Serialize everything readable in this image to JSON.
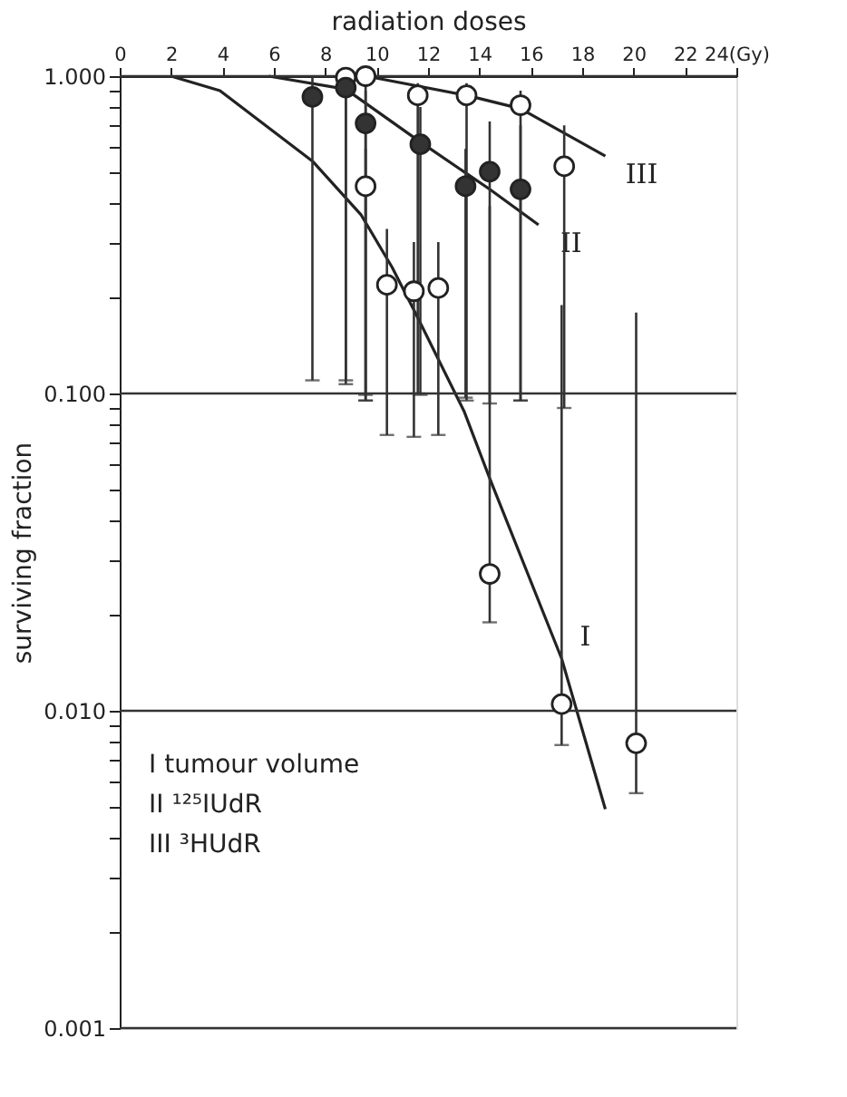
{
  "chart_data": {
    "type": "line",
    "xlabel": "radiation doses",
    "ylabel": "surviving fraction",
    "xlim": [
      0,
      24
    ],
    "xticks": [
      0,
      2,
      4,
      6,
      8,
      10,
      12,
      14,
      16,
      18,
      20,
      22,
      {
        "value": 24,
        "label": "24(Gy)"
      }
    ],
    "ylim": [
      0.001,
      1
    ],
    "log": true,
    "grid": "y",
    "yticks": [
      {
        "value": 0.001,
        "label": "0.001"
      },
      {
        "value": 0.002,
        "label": null
      },
      {
        "value": 0.003,
        "label": null
      },
      {
        "value": 0.004,
        "label": null
      },
      {
        "value": 0.005,
        "label": null
      },
      {
        "value": 0.006,
        "label": null
      },
      {
        "value": 0.007,
        "label": null
      },
      {
        "value": 0.008,
        "label": null
      },
      {
        "value": 0.009,
        "label": null
      },
      {
        "value": 0.01,
        "label": "0.010"
      },
      {
        "value": 0.02,
        "label": null
      },
      {
        "value": 0.03,
        "label": null
      },
      {
        "value": 0.04,
        "label": null
      },
      {
        "value": 0.05,
        "label": null
      },
      {
        "value": 0.06,
        "label": null
      },
      {
        "value": 0.07,
        "label": null
      },
      {
        "value": 0.08,
        "label": null
      },
      {
        "value": 0.09,
        "label": null
      },
      {
        "value": 0.1,
        "label": "0.100"
      },
      {
        "value": 0.2,
        "label": null
      },
      {
        "value": 0.3,
        "label": null
      },
      {
        "value": 0.4,
        "label": null
      },
      {
        "value": 0.5,
        "label": null
      },
      {
        "value": 0.6,
        "label": null
      },
      {
        "value": 0.7,
        "label": null
      },
      {
        "value": 0.8,
        "label": null
      },
      {
        "value": 0.9,
        "label": null
      },
      {
        "value": 1,
        "label": "1.000"
      }
    ],
    "line_style": "solid",
    "series": [
      {
        "name": "I",
        "color": "#222222",
        "x": [
          2,
          3.9,
          7.5,
          9.4,
          10.6,
          11.5,
          13.4,
          14.4,
          17.2,
          18.9
        ],
        "values": [
          1.0,
          0.9,
          0.54,
          0.365,
          0.25,
          0.18,
          0.088,
          0.054,
          0.0146,
          0.0049
        ]
      },
      {
        "name": "II",
        "color": "#222222",
        "x": [
          5.8,
          8.8,
          11.7,
          14.4,
          16.3
        ],
        "values": [
          1.0,
          0.91,
          0.62,
          0.44,
          0.34
        ]
      },
      {
        "name": "III",
        "color": "#222222",
        "x": [
          9.6,
          13.5,
          15.6,
          18.9
        ],
        "values": [
          1.0,
          0.87,
          0.79,
          0.56
        ]
      },
      {
        "type": "scatter",
        "color": "#333333",
        "marker": "circle",
        "x": [
          7.5,
          8.8,
          9.57,
          11.7,
          13.46,
          14.4,
          15.6
        ],
        "values": [
          0.86,
          0.92,
          0.71,
          0.61,
          0.45,
          0.5,
          0.44
        ],
        "errors": [
          [
            0.11,
            1.0
          ],
          [
            0.107,
            0.95
          ],
          [
            0.099,
            0.9
          ],
          [
            0.099,
            0.8
          ],
          [
            0.097,
            0.59
          ],
          [
            0.093,
            0.72
          ],
          [
            0.095,
            0.7
          ]
        ]
      },
      {
        "type": "scatter",
        "color": "#ffffff",
        "marker": "circle",
        "x": [
          8.8,
          9.57,
          9.57,
          10.4,
          11.45,
          12.4,
          11.6,
          13.5,
          14.4,
          15.6,
          17.3,
          17.2,
          20.1
        ],
        "values": [
          0.99,
          1.0,
          0.45,
          0.22,
          0.21,
          0.215,
          0.87,
          0.87,
          0.027,
          0.81,
          0.52,
          0.0105,
          0.0079
        ],
        "errors": [
          [
            0.11,
            1.0
          ],
          [
            0.095,
            1.0
          ],
          [
            0.095,
            0.59
          ],
          [
            0.074,
            0.33
          ],
          [
            0.073,
            0.3
          ],
          [
            0.074,
            0.3
          ],
          [
            0.1,
            0.95
          ],
          [
            0.095,
            0.95
          ],
          [
            0.019,
            0.39
          ],
          [
            0.095,
            0.9
          ],
          [
            0.09,
            0.7
          ],
          [
            0.0078,
            0.19
          ],
          [
            0.0055,
            0.18
          ]
        ]
      }
    ],
    "annotations": [
      "I tumour volume",
      "II ¹²⁵IUdR",
      "III ³HUdR"
    ]
  }
}
